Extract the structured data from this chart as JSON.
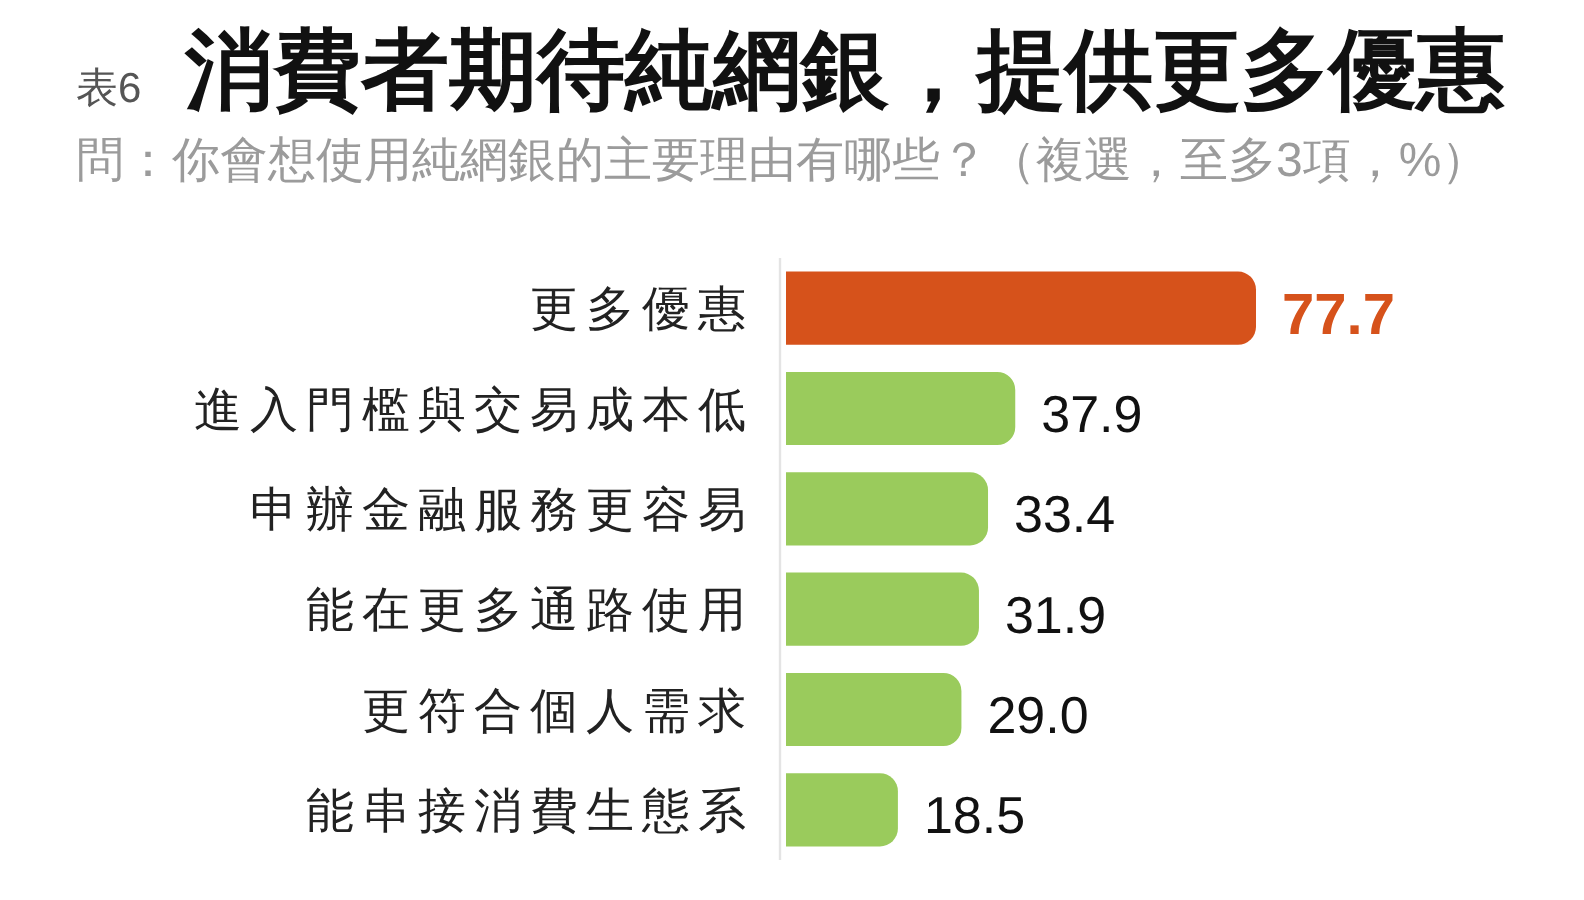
{
  "chart_data": {
    "type": "bar",
    "orientation": "horizontal",
    "title": "消費者期待純網銀，提供更多優惠",
    "subtitle": "問：你會想使用純網銀的主要理由有哪些？（複選，至多3項，%）",
    "annotations": [
      "表6"
    ],
    "categories": [
      "更多優惠",
      "進入門檻與交易成本低",
      "申辦金融服務更容易",
      "能在更多通路使用",
      "更符合個人需求",
      "能串接消費生態系"
    ],
    "values": [
      77.7,
      37.9,
      33.4,
      31.9,
      29.0,
      18.5
    ],
    "value_labels": [
      "77.7",
      "37.9",
      "33.4",
      "31.9",
      "29.0",
      "18.5"
    ],
    "colors": [
      "#d6521b",
      "#9acb5c",
      "#9acb5c",
      "#9acb5c",
      "#9acb5c",
      "#9acb5c"
    ],
    "tick_labels": "y"
  }
}
